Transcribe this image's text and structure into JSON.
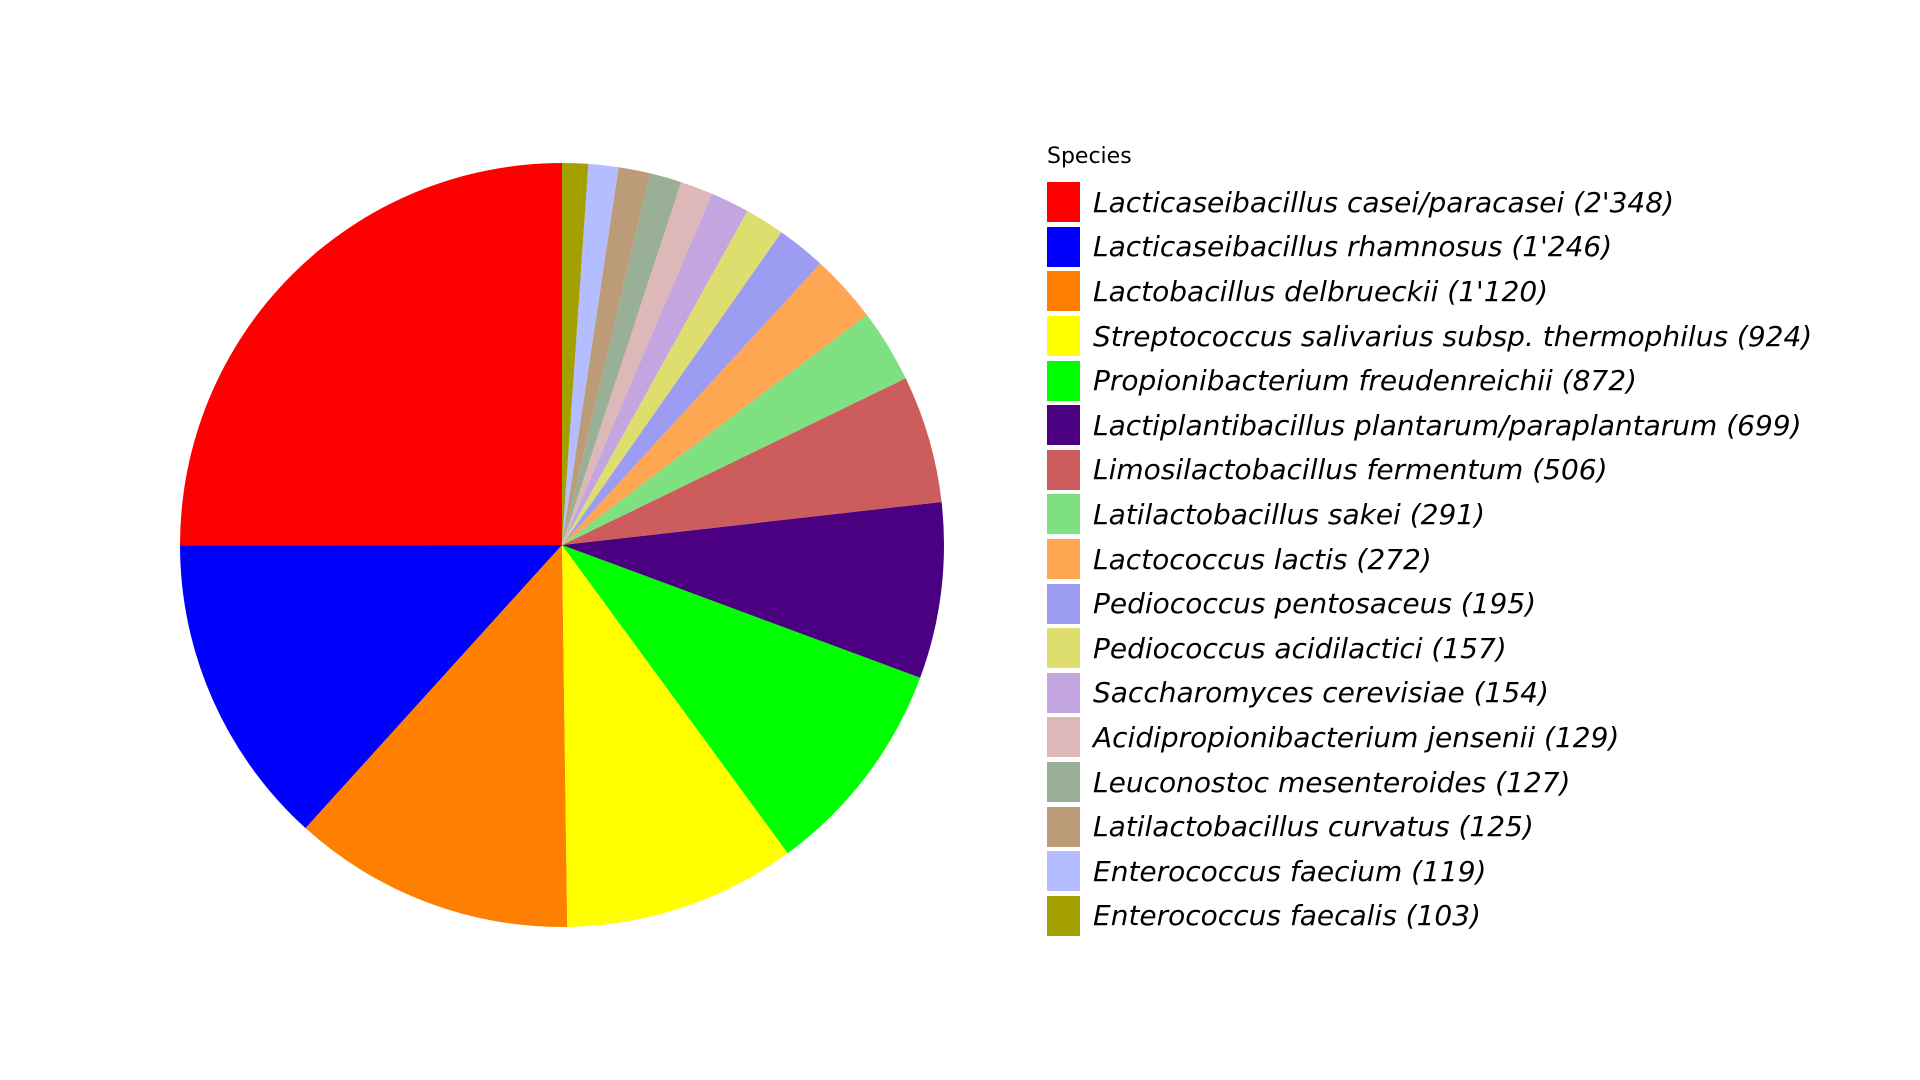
{
  "chart_data": {
    "type": "pie",
    "legend_title": "Species",
    "legend_position": "right",
    "start_angle": "top",
    "direction": "counterclockwise",
    "slices": [
      {
        "label": "Lacticaseibacillus casei/paracasei (2'348)",
        "value": 2348,
        "color": "#ff0000"
      },
      {
        "label": "Lacticaseibacillus rhamnosus (1'246)",
        "value": 1246,
        "color": "#0000ff"
      },
      {
        "label": "Lactobacillus delbrueckii (1'120)",
        "value": 1120,
        "color": "#ff8000"
      },
      {
        "label": "Streptococcus salivarius subsp. thermophilus (924)",
        "value": 924,
        "color": "#ffff00"
      },
      {
        "label": "Propionibacterium freudenreichii (872)",
        "value": 872,
        "color": "#00ff00"
      },
      {
        "label": "Lactiplantibacillus plantarum/paraplantarum (699)",
        "value": 699,
        "color": "#4b0082"
      },
      {
        "label": "Limosilactobacillus fermentum (506)",
        "value": 506,
        "color": "#cd5c5c"
      },
      {
        "label": "Latilactobacillus sakei (291)",
        "value": 291,
        "color": "#7fe081"
      },
      {
        "label": "Lactococcus lactis (272)",
        "value": 272,
        "color": "#ffa652"
      },
      {
        "label": "Pediococcus pentosaceus (195)",
        "value": 195,
        "color": "#9c9cf2"
      },
      {
        "label": "Pediococcus acidilactici (157)",
        "value": 157,
        "color": "#dede6e"
      },
      {
        "label": "Saccharomyces cerevisiae (154)",
        "value": 154,
        "color": "#c3a6e0"
      },
      {
        "label": "Acidipropionibacterium jensenii (129)",
        "value": 129,
        "color": "#deb8b8"
      },
      {
        "label": "Leuconostoc mesenteroides (127)",
        "value": 127,
        "color": "#99b096"
      },
      {
        "label": "Latilactobacillus curvatus (125)",
        "value": 125,
        "color": "#bc9c78"
      },
      {
        "label": "Enterococcus faecium (119)",
        "value": 119,
        "color": "#b3bdff"
      },
      {
        "label": "Enterococcus faecalis (103)",
        "value": 103,
        "color": "#a3a000"
      }
    ]
  }
}
